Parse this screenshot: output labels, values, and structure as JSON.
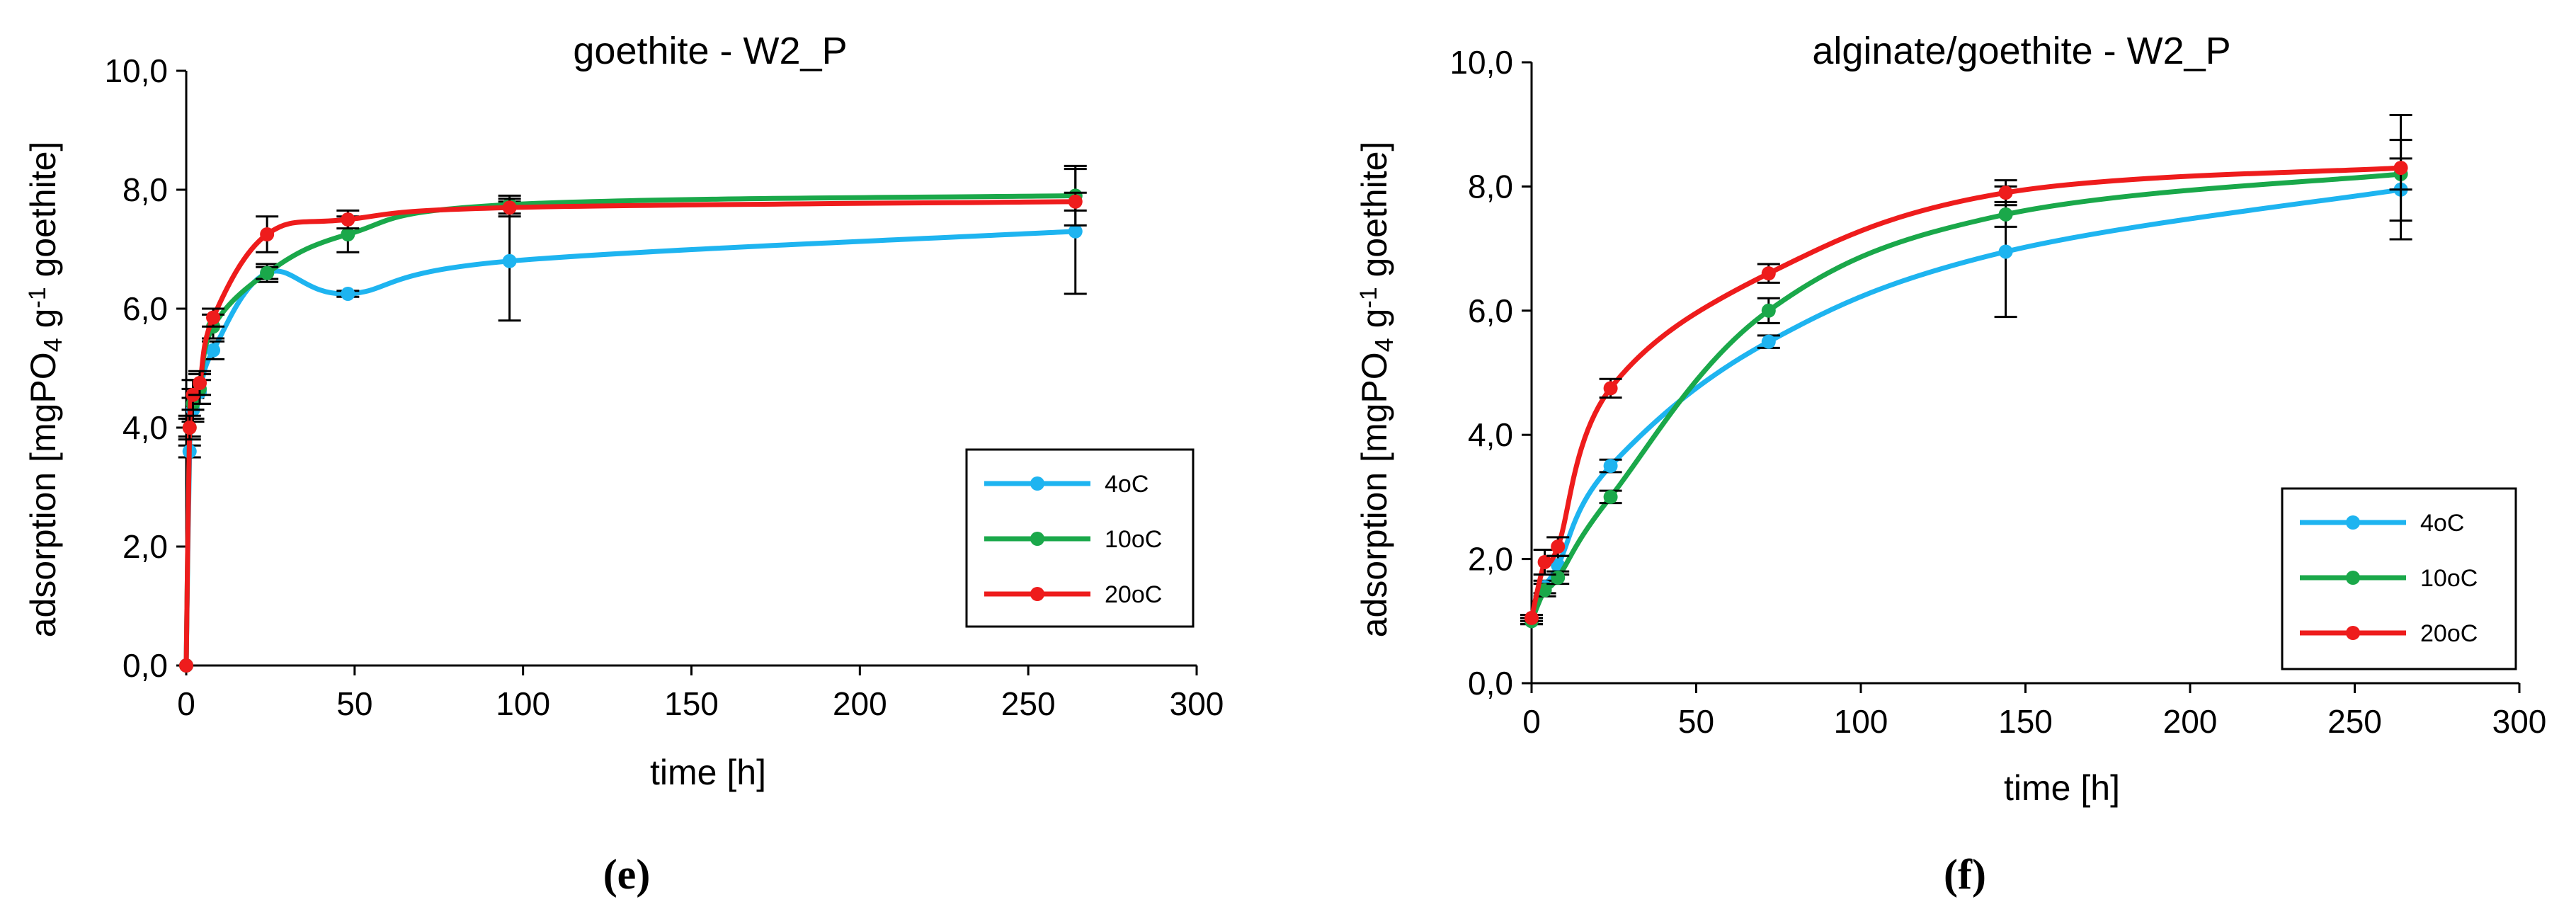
{
  "chart_data": [
    {
      "type": "line",
      "title": "goethite - W2_P",
      "xlabel": "time [h]",
      "ylabel_parts": [
        "adsorption [mgPO",
        "4",
        " g",
        "-1",
        " goethite]"
      ],
      "caption": "(e)",
      "xlim": [
        0,
        300
      ],
      "ylim": [
        0,
        10
      ],
      "xticks": [
        "0",
        "50",
        "100",
        "150",
        "200",
        "250",
        "300"
      ],
      "yticks": [
        "0,0",
        "2,0",
        "4,0",
        "6,0",
        "8,0",
        "10,0"
      ],
      "legend_position": "lower-right",
      "series": [
        {
          "name": "4oC",
          "color": "#1eb4f0",
          "x": [
            0,
            1,
            2,
            4,
            8,
            24,
            48,
            96,
            264
          ],
          "y": [
            0,
            3.6,
            4.3,
            4.6,
            5.3,
            6.6,
            6.25,
            6.8,
            7.3
          ],
          "err": [
            0,
            0.1,
            0.2,
            0.2,
            0.15,
            0.15,
            0.05,
            1.0,
            1.05
          ]
        },
        {
          "name": "10oC",
          "color": "#1aa84a",
          "x": [
            0,
            1,
            2,
            4,
            8,
            24,
            48,
            96,
            264
          ],
          "y": [
            0,
            4.0,
            4.4,
            4.65,
            5.7,
            6.6,
            7.25,
            7.75,
            7.9
          ],
          "err": [
            0,
            0.15,
            0.25,
            0.25,
            0.2,
            0.1,
            0.3,
            0.15,
            0.5
          ]
        },
        {
          "name": "20oC",
          "color": "#ee1c1c",
          "x": [
            0,
            1,
            2,
            4,
            8,
            24,
            48,
            96,
            264
          ],
          "y": [
            0,
            4.0,
            4.55,
            4.75,
            5.85,
            7.25,
            7.5,
            7.7,
            7.8
          ],
          "err": [
            0,
            0.2,
            0.25,
            0.2,
            0.15,
            0.3,
            0.15,
            0.15,
            0.15
          ]
        }
      ]
    },
    {
      "type": "line",
      "title": "alginate/goethite - W2_P",
      "xlabel": "time [h]",
      "ylabel_parts": [
        "adsorption [mgPO",
        "4",
        "  g",
        "-1",
        " goethite]"
      ],
      "caption": "(f)",
      "xlim": [
        0,
        300
      ],
      "ylim": [
        0,
        10
      ],
      "xticks": [
        "0",
        "50",
        "100",
        "150",
        "200",
        "250",
        "300"
      ],
      "yticks": [
        "0,0",
        "2,0",
        "4,0",
        "6,0",
        "8,0",
        "10,0"
      ],
      "legend_position": "lower-right",
      "series": [
        {
          "name": "4oC",
          "color": "#1eb4f0",
          "x": [
            0,
            4,
            8,
            24,
            72,
            144,
            264
          ],
          "y": [
            1.0,
            1.55,
            1.9,
            3.5,
            5.5,
            6.95,
            7.95
          ],
          "err": [
            0.05,
            0.1,
            0.15,
            0.1,
            0.1,
            1.05,
            0.8
          ]
        },
        {
          "name": "10oC",
          "color": "#1aa84a",
          "x": [
            0,
            4,
            8,
            24,
            72,
            144,
            264
          ],
          "y": [
            1.0,
            1.5,
            1.7,
            3.0,
            6.0,
            7.55,
            8.2
          ],
          "err": [
            0.05,
            0.1,
            0.1,
            0.1,
            0.2,
            0.2,
            0.25
          ]
        },
        {
          "name": "20oC",
          "color": "#ee1c1c",
          "x": [
            0,
            4,
            8,
            24,
            72,
            144,
            264
          ],
          "y": [
            1.05,
            1.95,
            2.2,
            4.75,
            6.6,
            7.9,
            8.3
          ],
          "err": [
            0.05,
            0.2,
            0.15,
            0.15,
            0.15,
            0.2,
            0.85
          ]
        }
      ]
    }
  ]
}
